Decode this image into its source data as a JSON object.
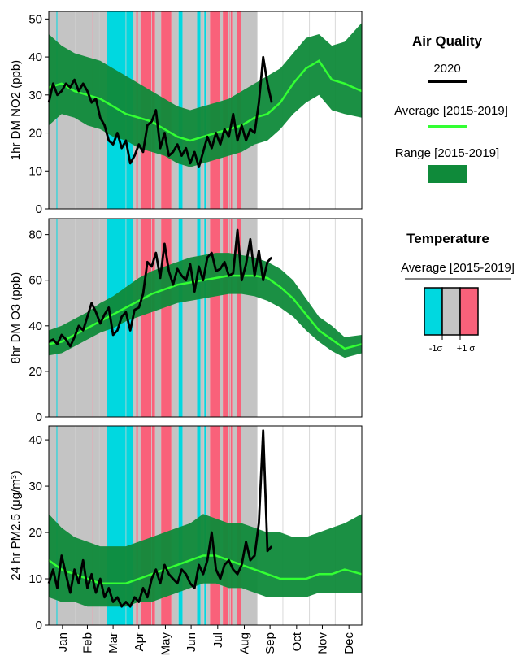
{
  "colors": {
    "cold": "#00d8e0",
    "normal": "#c4c4c4",
    "warm": "#f9617a",
    "range": "#0f8a3a",
    "average": "#33ff33",
    "year2020": "#000000"
  },
  "months": [
    "Jan",
    "Feb",
    "Mar",
    "Apr",
    "May",
    "Jun",
    "Jul",
    "Aug",
    "Sep",
    "Oct",
    "Nov",
    "Dec"
  ],
  "legend": {
    "air_quality_title": "Air Quality",
    "year_label": "2020",
    "average_label": "Average [2015-2019]",
    "range_label": "Range [2015-2019]",
    "temperature_title": "Temperature",
    "temperature_average_label": "Average [2015-2019]",
    "minus_sigma": "-1σ",
    "plus_sigma": "+1 σ"
  },
  "chart_data": [
    {
      "type": "line",
      "ylabel": "1hr DM NO2 (ppb)",
      "ylim": [
        0,
        52
      ],
      "yticks": [
        0,
        10,
        20,
        30,
        40,
        50
      ],
      "series": [
        {
          "name": "2020",
          "x": [
            0,
            5,
            10,
            15,
            20,
            25,
            30,
            35,
            40,
            45,
            50,
            55,
            60,
            65,
            70,
            75,
            80,
            85,
            90,
            95,
            100,
            105,
            110,
            115,
            120,
            125,
            130,
            135,
            140,
            145,
            150,
            155,
            160,
            165,
            170,
            175,
            180,
            185,
            190,
            195,
            200,
            205,
            210,
            215,
            220,
            225,
            230,
            235,
            240,
            245,
            250,
            255,
            260
          ],
          "y": [
            28,
            33,
            30,
            31,
            33,
            32,
            34,
            31,
            33,
            31,
            28,
            29,
            24,
            22,
            18,
            17,
            20,
            16,
            18,
            12,
            14,
            17,
            15,
            22,
            23,
            26,
            16,
            20,
            14,
            15,
            17,
            14,
            16,
            12,
            15,
            11,
            15,
            19,
            16,
            20,
            17,
            21,
            19,
            25,
            18,
            22,
            18,
            21,
            20,
            28,
            40,
            33,
            28
          ]
        },
        {
          "name": "Average [2015-2019]",
          "x": [
            0,
            15,
            30,
            45,
            60,
            75,
            90,
            105,
            120,
            135,
            150,
            165,
            180,
            195,
            210,
            225,
            240,
            255,
            270,
            285,
            300,
            315,
            330,
            345,
            365
          ],
          "y": [
            32,
            33,
            31,
            30,
            29,
            27,
            25,
            24,
            23,
            21,
            19,
            18,
            19,
            20,
            21,
            22,
            24,
            25,
            28,
            33,
            37,
            39,
            34,
            33,
            31
          ]
        },
        {
          "name": "Range [2015-2019]",
          "x": [
            0,
            15,
            30,
            45,
            60,
            75,
            90,
            105,
            120,
            135,
            150,
            165,
            180,
            195,
            210,
            225,
            240,
            255,
            270,
            285,
            300,
            315,
            330,
            345,
            365
          ],
          "low": [
            22,
            25,
            24,
            22,
            21,
            19,
            18,
            16,
            15,
            14,
            12,
            11,
            12,
            13,
            14,
            15,
            17,
            18,
            21,
            25,
            28,
            30,
            26,
            25,
            24
          ],
          "high": [
            46,
            43,
            41,
            40,
            39,
            37,
            35,
            33,
            31,
            29,
            27,
            26,
            27,
            28,
            29,
            31,
            33,
            35,
            37,
            41,
            45,
            46,
            43,
            44,
            49
          ]
        }
      ]
    },
    {
      "type": "line",
      "ylabel": "8hr DM O3 (ppb)",
      "ylim": [
        0,
        87
      ],
      "yticks": [
        0,
        20,
        40,
        60,
        80
      ],
      "series": [
        {
          "name": "2020",
          "x": [
            0,
            5,
            10,
            15,
            20,
            25,
            30,
            35,
            40,
            45,
            50,
            55,
            60,
            65,
            70,
            75,
            80,
            85,
            90,
            95,
            100,
            105,
            110,
            115,
            120,
            125,
            130,
            135,
            140,
            145,
            150,
            155,
            160,
            165,
            170,
            175,
            180,
            185,
            190,
            195,
            200,
            205,
            210,
            215,
            220,
            225,
            230,
            235,
            240,
            245,
            250,
            255,
            260
          ],
          "y": [
            33,
            34,
            32,
            36,
            34,
            31,
            35,
            40,
            38,
            44,
            50,
            46,
            41,
            45,
            48,
            36,
            38,
            44,
            46,
            38,
            47,
            48,
            54,
            68,
            66,
            72,
            61,
            76,
            64,
            58,
            65,
            62,
            60,
            67,
            55,
            66,
            60,
            70,
            72,
            64,
            65,
            68,
            62,
            63,
            82,
            60,
            67,
            78,
            62,
            73,
            60,
            68,
            70
          ]
        },
        {
          "name": "Average [2015-2019]",
          "x": [
            0,
            15,
            30,
            45,
            60,
            75,
            90,
            105,
            120,
            135,
            150,
            165,
            180,
            195,
            210,
            225,
            240,
            255,
            270,
            285,
            300,
            315,
            330,
            345,
            365
          ],
          "y": [
            32,
            33,
            36,
            39,
            42,
            45,
            48,
            51,
            54,
            56,
            58,
            59,
            60,
            61,
            62,
            62,
            62,
            61,
            57,
            52,
            45,
            38,
            34,
            30,
            32
          ]
        },
        {
          "name": "Range [2015-2019]",
          "x": [
            0,
            15,
            30,
            45,
            60,
            75,
            90,
            105,
            120,
            135,
            150,
            165,
            180,
            195,
            210,
            225,
            240,
            255,
            270,
            285,
            300,
            315,
            330,
            345,
            365
          ],
          "low": [
            27,
            28,
            31,
            34,
            37,
            39,
            42,
            44,
            46,
            48,
            50,
            51,
            52,
            53,
            54,
            54,
            53,
            51,
            48,
            44,
            38,
            33,
            29,
            26,
            28
          ],
          "high": [
            38,
            40,
            43,
            46,
            50,
            53,
            57,
            61,
            64,
            66,
            68,
            70,
            71,
            72,
            72,
            71,
            70,
            68,
            65,
            60,
            52,
            44,
            40,
            35,
            36
          ]
        }
      ]
    },
    {
      "type": "line",
      "ylabel": "24 hr PM2.5 (μg/m³)",
      "ylim": [
        0,
        43
      ],
      "yticks": [
        0,
        10,
        20,
        30,
        40
      ],
      "series": [
        {
          "name": "2020",
          "x": [
            0,
            5,
            10,
            15,
            20,
            25,
            30,
            35,
            40,
            45,
            50,
            55,
            60,
            65,
            70,
            75,
            80,
            85,
            90,
            95,
            100,
            105,
            110,
            115,
            120,
            125,
            130,
            135,
            140,
            145,
            150,
            155,
            160,
            165,
            170,
            175,
            180,
            185,
            190,
            195,
            200,
            205,
            210,
            215,
            220,
            225,
            230,
            235,
            240,
            245,
            250,
            255,
            260
          ],
          "y": [
            9,
            12,
            8,
            15,
            11,
            7,
            12,
            9,
            14,
            8,
            11,
            7,
            10,
            6,
            8,
            5,
            6,
            4,
            5,
            4,
            6,
            5,
            8,
            6,
            10,
            12,
            9,
            13,
            11,
            10,
            9,
            12,
            11,
            9,
            8,
            13,
            11,
            14,
            20,
            12,
            10,
            13,
            14,
            12,
            11,
            13,
            18,
            14,
            15,
            22,
            42,
            16,
            17
          ]
        },
        {
          "name": "Average [2015-2019]",
          "x": [
            0,
            15,
            30,
            45,
            60,
            75,
            90,
            105,
            120,
            135,
            150,
            165,
            180,
            195,
            210,
            225,
            240,
            255,
            270,
            285,
            300,
            315,
            330,
            345,
            365
          ],
          "y": [
            14,
            12,
            11,
            10,
            9,
            9,
            9,
            10,
            11,
            12,
            13,
            14,
            15,
            15,
            14,
            13,
            12,
            11,
            10,
            10,
            10,
            11,
            11,
            12,
            11
          ]
        },
        {
          "name": "Range [2015-2019]",
          "x": [
            0,
            15,
            30,
            45,
            60,
            75,
            90,
            105,
            120,
            135,
            150,
            165,
            180,
            195,
            210,
            225,
            240,
            255,
            270,
            285,
            300,
            315,
            330,
            345,
            365
          ],
          "low": [
            6,
            5,
            5,
            4,
            4,
            4,
            4,
            5,
            5,
            6,
            7,
            8,
            9,
            9,
            8,
            8,
            7,
            6,
            6,
            6,
            6,
            7,
            7,
            7,
            7
          ],
          "high": [
            24,
            21,
            19,
            18,
            17,
            17,
            17,
            18,
            19,
            20,
            21,
            22,
            24,
            23,
            22,
            22,
            21,
            20,
            20,
            19,
            19,
            20,
            21,
            22,
            24
          ]
        }
      ]
    }
  ],
  "temperature_bands": [
    {
      "start": 0,
      "end": 9,
      "class": "normal"
    },
    {
      "start": 9,
      "end": 10,
      "class": "cold"
    },
    {
      "start": 10,
      "end": 51,
      "class": "normal"
    },
    {
      "start": 51,
      "end": 52,
      "class": "warm"
    },
    {
      "start": 52,
      "end": 68,
      "class": "normal"
    },
    {
      "start": 68,
      "end": 98,
      "class": "cold"
    },
    {
      "start": 98,
      "end": 102,
      "class": "normal"
    },
    {
      "start": 102,
      "end": 104,
      "class": "warm"
    },
    {
      "start": 104,
      "end": 107,
      "class": "normal"
    },
    {
      "start": 107,
      "end": 124,
      "class": "warm"
    },
    {
      "start": 124,
      "end": 131,
      "class": "normal"
    },
    {
      "start": 131,
      "end": 143,
      "class": "warm"
    },
    {
      "start": 143,
      "end": 151,
      "class": "normal"
    },
    {
      "start": 151,
      "end": 156,
      "class": "cold"
    },
    {
      "start": 156,
      "end": 173,
      "class": "normal"
    },
    {
      "start": 173,
      "end": 177,
      "class": "cold"
    },
    {
      "start": 177,
      "end": 181,
      "class": "normal"
    },
    {
      "start": 181,
      "end": 184,
      "class": "cold"
    },
    {
      "start": 184,
      "end": 188,
      "class": "normal"
    },
    {
      "start": 188,
      "end": 200,
      "class": "warm"
    },
    {
      "start": 200,
      "end": 203,
      "class": "normal"
    },
    {
      "start": 203,
      "end": 209,
      "class": "warm"
    },
    {
      "start": 209,
      "end": 211,
      "class": "normal"
    },
    {
      "start": 211,
      "end": 214,
      "class": "warm"
    },
    {
      "start": 214,
      "end": 219,
      "class": "normal"
    },
    {
      "start": 219,
      "end": 224,
      "class": "warm"
    },
    {
      "start": 224,
      "end": 243,
      "class": "normal"
    }
  ]
}
